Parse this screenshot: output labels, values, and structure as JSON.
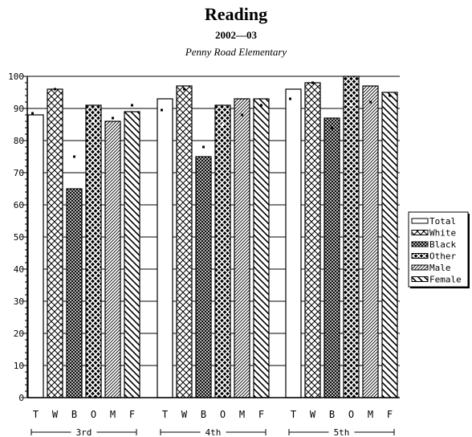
{
  "chart_data": {
    "type": "bar",
    "title": "Reading",
    "subtitle": "2002—03",
    "school": "Penny Road Elementary",
    "xlabel": "",
    "ylabel": "",
    "ylim": [
      0,
      100
    ],
    "yticks": [
      "0",
      "10",
      "20",
      "30",
      "40",
      "50",
      "60",
      "70",
      "80",
      "90",
      "100"
    ],
    "grid": true,
    "legend_position": "right",
    "categories": [
      "3rd",
      "4th",
      "5th"
    ],
    "bar_labels": [
      "T",
      "W",
      "B",
      "O",
      "M",
      "F"
    ],
    "series": [
      {
        "name": "Total",
        "pattern": "blank",
        "values": [
          88,
          93,
          96
        ]
      },
      {
        "name": "White",
        "pattern": "crosshatch",
        "values": [
          96,
          97,
          98
        ]
      },
      {
        "name": "Black",
        "pattern": "dense-mesh",
        "values": [
          65,
          75,
          87
        ]
      },
      {
        "name": "Other",
        "pattern": "checker",
        "values": [
          91,
          91,
          100
        ]
      },
      {
        "name": "Male",
        "pattern": "fine-diag",
        "values": [
          86,
          93,
          97
        ]
      },
      {
        "name": "Female",
        "pattern": "wide-diag",
        "values": [
          89,
          93,
          95
        ]
      }
    ],
    "markers": [
      [
        88.5,
        96,
        75,
        86,
        87,
        91
      ],
      [
        89.5,
        96,
        78,
        85,
        88,
        91
      ],
      [
        93,
        98,
        84,
        91,
        92,
        94
      ]
    ]
  },
  "colors": {
    "ink": "#000000",
    "paper": "#ffffff"
  }
}
